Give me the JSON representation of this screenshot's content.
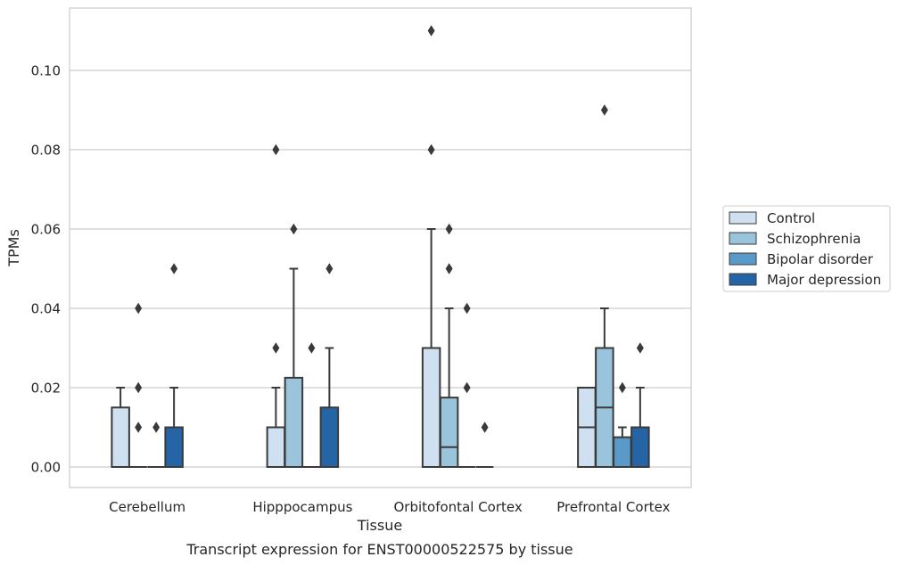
{
  "chart_data": {
    "type": "box",
    "title": "",
    "caption": "Transcript expression for ENST00000522575 by tissue",
    "xlabel": "Tissue",
    "ylabel": "TPMs",
    "ylim": [
      -0.0055,
      0.116
    ],
    "yticks": [
      "0.00",
      "0.02",
      "0.04",
      "0.06",
      "0.08",
      "0.10"
    ],
    "grid": "horizontal",
    "legend_position": "right",
    "categories": [
      "Cerebellum",
      "Hipppocampus",
      "Orbitofontal Cortex",
      "Prefrontal Cortex"
    ],
    "series": [
      {
        "name": "Control",
        "color": "#cfe0f0",
        "boxes": [
          {
            "q1": 0,
            "median": 0,
            "q3": 0.015,
            "whisker_low": 0,
            "whisker_high": 0.02,
            "outliers": []
          },
          {
            "q1": 0,
            "median": 0,
            "q3": 0.01,
            "whisker_low": 0,
            "whisker_high": 0.02,
            "outliers": [
              0.03,
              0.08
            ]
          },
          {
            "q1": 0,
            "median": 0,
            "q3": 0.03,
            "whisker_low": 0,
            "whisker_high": 0.06,
            "outliers": [
              0.08,
              0.11
            ]
          },
          {
            "q1": 0,
            "median": 0.01,
            "q3": 0.02,
            "whisker_low": 0,
            "whisker_high": 0.02,
            "outliers": []
          }
        ]
      },
      {
        "name": "Schizophrenia",
        "color": "#9ac3dc",
        "boxes": [
          {
            "q1": 0,
            "median": 0,
            "q3": 0,
            "whisker_low": 0,
            "whisker_high": 0,
            "outliers": [
              0.01,
              0.02,
              0.04
            ]
          },
          {
            "q1": 0,
            "median": 0,
            "q3": 0.0225,
            "whisker_low": 0,
            "whisker_high": 0.05,
            "outliers": [
              0.06
            ]
          },
          {
            "q1": 0,
            "median": 0.005,
            "q3": 0.0175,
            "whisker_low": 0,
            "whisker_high": 0.04,
            "outliers": [
              0.05,
              0.06
            ]
          },
          {
            "q1": 0,
            "median": 0.015,
            "q3": 0.03,
            "whisker_low": 0,
            "whisker_high": 0.04,
            "outliers": [
              0.09
            ]
          }
        ]
      },
      {
        "name": "Bipolar disorder",
        "color": "#5a9ac8",
        "boxes": [
          {
            "q1": 0,
            "median": 0,
            "q3": 0,
            "whisker_low": 0,
            "whisker_high": 0,
            "outliers": [
              0.01
            ]
          },
          {
            "q1": 0,
            "median": 0,
            "q3": 0,
            "whisker_low": 0,
            "whisker_high": 0,
            "outliers": [
              0.03
            ]
          },
          {
            "q1": 0,
            "median": 0,
            "q3": 0,
            "whisker_low": 0,
            "whisker_high": 0,
            "outliers": [
              0.02,
              0.04
            ]
          },
          {
            "q1": 0,
            "median": 0,
            "q3": 0.0075,
            "whisker_low": 0,
            "whisker_high": 0.01,
            "outliers": [
              0.02
            ]
          }
        ]
      },
      {
        "name": "Major depression",
        "color": "#2565a6",
        "boxes": [
          {
            "q1": 0,
            "median": 0,
            "q3": 0.01,
            "whisker_low": 0,
            "whisker_high": 0.02,
            "outliers": [
              0.05
            ]
          },
          {
            "q1": 0,
            "median": 0,
            "q3": 0.015,
            "whisker_low": 0,
            "whisker_high": 0.03,
            "outliers": [
              0.05
            ]
          },
          {
            "q1": 0,
            "median": 0,
            "q3": 0,
            "whisker_low": 0,
            "whisker_high": 0,
            "outliers": [
              0.01
            ]
          },
          {
            "q1": 0,
            "median": 0,
            "q3": 0.01,
            "whisker_low": 0,
            "whisker_high": 0.02,
            "outliers": [
              0.03
            ]
          }
        ]
      }
    ]
  }
}
